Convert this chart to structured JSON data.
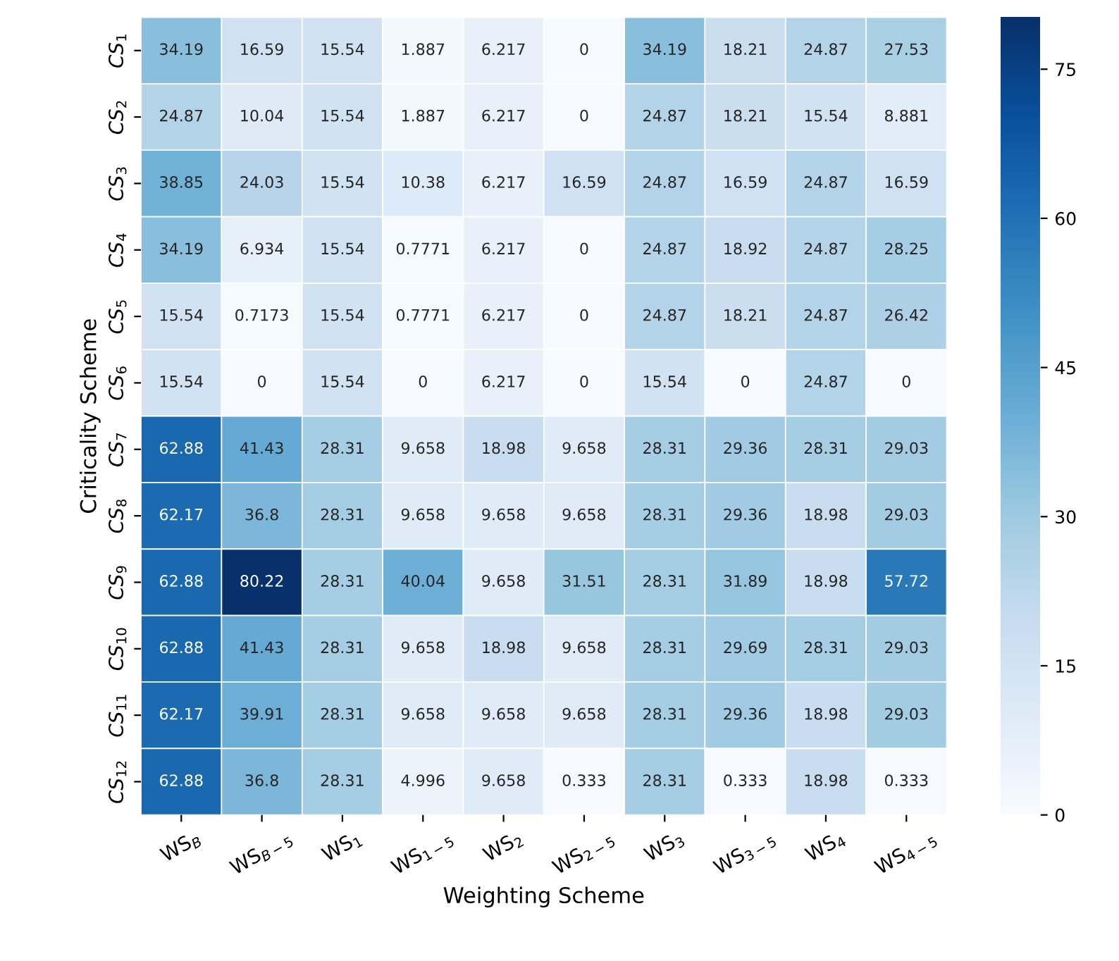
{
  "chart_data": {
    "type": "heatmap",
    "xlabel": "Weighting Scheme",
    "ylabel": "Criticality Scheme",
    "categories": [
      "WS$_{B}$",
      "WS$_{B−5}$",
      "WS$_{1}$",
      "WS$_{1−5}$",
      "WS$_{2}$",
      "WS$_{2−5}$",
      "WS$_{3}$",
      "WS$_{3−5}$",
      "WS$_{4}$",
      "WS$_{4−5}$"
    ],
    "y_categories": [
      "CS$_{1}$",
      "CS$_{2}$",
      "CS$_{3}$",
      "CS$_{4}$",
      "CS$_{5}$",
      "CS$_{6}$",
      "CS$_{7}$",
      "CS$_{8}$",
      "CS$_{9}$",
      "CS$_{10}$",
      "CS$_{11}$",
      "CS$_{12}$"
    ],
    "cells": [
      [
        34.19,
        16.59,
        15.54,
        1.887,
        6.217,
        0,
        34.19,
        18.21,
        24.87,
        27.53
      ],
      [
        24.87,
        10.04,
        15.54,
        1.887,
        6.217,
        0,
        24.87,
        18.21,
        15.54,
        8.881
      ],
      [
        38.85,
        24.03,
        15.54,
        10.38,
        6.217,
        16.59,
        24.87,
        16.59,
        24.87,
        16.59
      ],
      [
        34.19,
        6.934,
        15.54,
        0.7771,
        6.217,
        0,
        24.87,
        18.92,
        24.87,
        28.25
      ],
      [
        15.54,
        0.7173,
        15.54,
        0.7771,
        6.217,
        0,
        24.87,
        18.21,
        24.87,
        26.42
      ],
      [
        15.54,
        0,
        15.54,
        0,
        6.217,
        0,
        15.54,
        0,
        24.87,
        0
      ],
      [
        62.88,
        41.43,
        28.31,
        9.658,
        18.98,
        9.658,
        28.31,
        29.36,
        28.31,
        29.03
      ],
      [
        62.17,
        36.8,
        28.31,
        9.658,
        9.658,
        9.658,
        28.31,
        29.36,
        18.98,
        29.03
      ],
      [
        62.88,
        80.22,
        28.31,
        40.04,
        9.658,
        31.51,
        28.31,
        31.89,
        18.98,
        57.72
      ],
      [
        62.88,
        41.43,
        28.31,
        9.658,
        18.98,
        9.658,
        28.31,
        29.69,
        28.31,
        29.03
      ],
      [
        62.17,
        39.91,
        28.31,
        9.658,
        9.658,
        9.658,
        28.31,
        29.36,
        18.98,
        29.03
      ],
      [
        62.88,
        36.8,
        28.31,
        4.996,
        9.658,
        0.333,
        28.31,
        0.333,
        18.98,
        0.333
      ]
    ],
    "clim": [
      0,
      80.22
    ],
    "cticks": [
      0,
      15,
      30,
      45,
      60,
      75
    ],
    "data_labels": true
  }
}
